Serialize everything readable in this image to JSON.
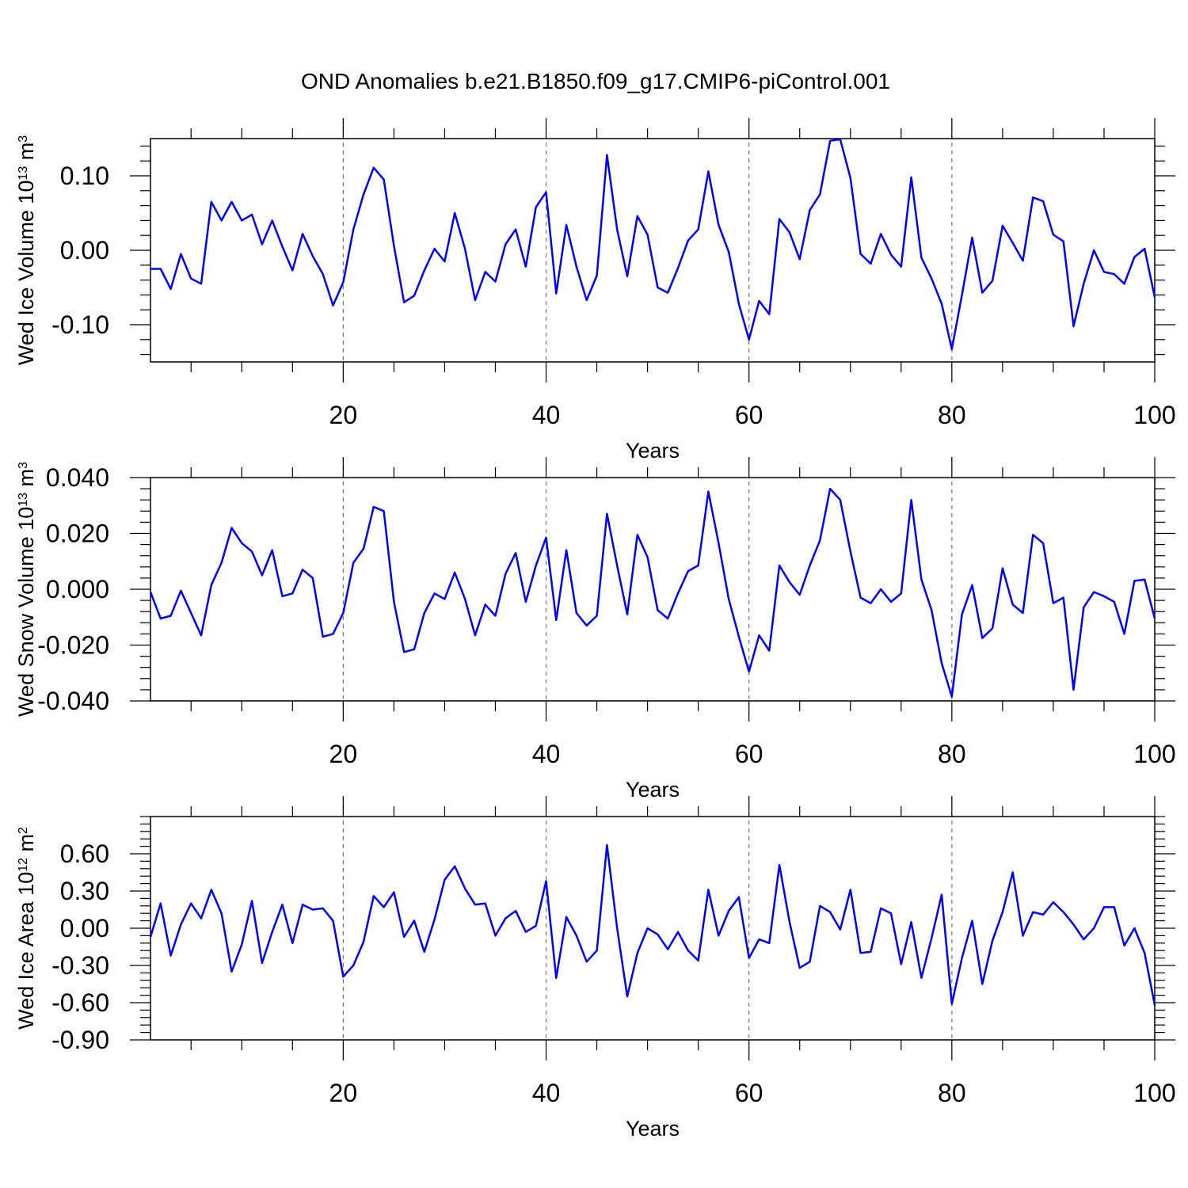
{
  "figure_title": "OND Anomalies b.e21.B1850.f09_g17.CMIP6-piControl.001",
  "chart_data": [
    {
      "type": "line",
      "title": "OND Anomalies b.e21.B1850.f09_g17.CMIP6-piControl.001",
      "xlabel": "Years",
      "ylabel": {
        "main": "Wed Ice Volume 10",
        "sup": "13",
        "unit": " m",
        "unit_sup": "3"
      },
      "xlim": [
        1,
        100
      ],
      "ylim": [
        -0.15,
        0.15
      ],
      "xticks": [
        20,
        40,
        60,
        80,
        100
      ],
      "xtick_labels": [
        "20",
        "40",
        "60",
        "80",
        "100"
      ],
      "yticks": [
        -0.1,
        0.0,
        0.1
      ],
      "ytick_labels": [
        "-0.10",
        "0.00",
        "0.10"
      ],
      "grid": "dashed vertical at 20,40,60,80",
      "line_color": "#0000ff",
      "series": [
        {
          "name": "Wed Ice Volume",
          "x_start": 1,
          "values": [
            -0.025,
            -0.025,
            -0.052,
            -0.005,
            -0.038,
            -0.045,
            0.065,
            0.04,
            0.065,
            0.04,
            0.048,
            0.008,
            0.04,
            0.005,
            -0.027,
            0.022,
            -0.008,
            -0.032,
            -0.074,
            -0.043,
            0.028,
            0.075,
            0.111,
            0.095,
            0.006,
            -0.07,
            -0.061,
            -0.027,
            0.002,
            -0.015,
            0.05,
            0.002,
            -0.067,
            -0.029,
            -0.042,
            0.008,
            0.028,
            -0.022,
            0.058,
            0.078,
            -0.058,
            0.034,
            -0.022,
            -0.067,
            -0.034,
            0.128,
            0.028,
            -0.035,
            0.046,
            0.021,
            -0.05,
            -0.057,
            -0.024,
            0.013,
            0.028,
            0.106,
            0.034,
            -0.002,
            -0.072,
            -0.12,
            -0.068,
            -0.086,
            0.042,
            0.024,
            -0.012,
            0.054,
            0.075,
            0.147,
            0.149,
            0.097,
            -0.005,
            -0.018,
            0.022,
            -0.006,
            -0.022,
            0.098,
            -0.01,
            -0.038,
            -0.072,
            -0.133,
            -0.06,
            0.017,
            -0.057,
            -0.041,
            0.033,
            0.01,
            -0.014,
            0.071,
            0.066,
            0.021,
            0.012,
            -0.102,
            -0.045,
            0.0,
            -0.029,
            -0.032,
            -0.045,
            -0.009,
            0.002,
            -0.063
          ]
        }
      ]
    },
    {
      "type": "line",
      "xlabel": "Years",
      "ylabel": {
        "main": "Wed Snow Volume 10",
        "sup": "13",
        "unit": " m",
        "unit_sup": "3"
      },
      "xlim": [
        1,
        100
      ],
      "ylim": [
        -0.04,
        0.04
      ],
      "xticks": [
        20,
        40,
        60,
        80,
        100
      ],
      "xtick_labels": [
        "20",
        "40",
        "60",
        "80",
        "100"
      ],
      "yticks": [
        -0.04,
        -0.02,
        0.0,
        0.02,
        0.04
      ],
      "ytick_labels": [
        "-0.040",
        "-0.020",
        "0.000",
        "0.020",
        "0.040"
      ],
      "grid": "dashed vertical at 20,40,60,80",
      "line_color": "#0000ff",
      "series": [
        {
          "name": "Wed Snow Volume",
          "x_start": 1,
          "values": [
            -0.001,
            -0.0105,
            -0.0095,
            -0.0005,
            -0.0085,
            -0.0165,
            0.0015,
            0.0095,
            0.022,
            0.0165,
            0.0135,
            0.005,
            0.014,
            -0.0025,
            -0.0015,
            0.007,
            0.004,
            -0.017,
            -0.016,
            -0.0085,
            0.0095,
            0.0145,
            0.0295,
            0.028,
            -0.0045,
            -0.0225,
            -0.0215,
            -0.0085,
            -0.0015,
            -0.0035,
            0.006,
            -0.0035,
            -0.0165,
            -0.0055,
            -0.0095,
            0.0055,
            0.013,
            -0.0045,
            0.0085,
            0.0185,
            -0.011,
            0.014,
            -0.0085,
            -0.013,
            -0.0095,
            0.027,
            0.0085,
            -0.009,
            0.0195,
            0.0115,
            -0.0075,
            -0.0105,
            -0.0015,
            0.0065,
            0.0085,
            0.035,
            0.0165,
            -0.0035,
            -0.017,
            -0.0295,
            -0.0165,
            -0.022,
            0.0085,
            0.0025,
            -0.002,
            0.0085,
            0.0175,
            0.036,
            0.032,
            0.0135,
            -0.003,
            -0.005,
            0.0,
            -0.0045,
            -0.0015,
            0.032,
            0.0035,
            -0.0075,
            -0.0265,
            -0.0385,
            -0.009,
            0.0015,
            -0.0175,
            -0.014,
            0.0075,
            -0.0055,
            -0.0085,
            0.0195,
            0.0165,
            -0.005,
            -0.003,
            -0.036,
            -0.0065,
            -0.001,
            -0.0025,
            -0.0045,
            -0.016,
            0.003,
            0.0035,
            -0.0105
          ]
        }
      ]
    },
    {
      "type": "line",
      "xlabel": "Years",
      "ylabel": {
        "main": "Wed Ice Area 10",
        "sup": "12",
        "unit": " m",
        "unit_sup": "2"
      },
      "xlim": [
        1,
        100
      ],
      "ylim": [
        -0.9,
        0.9
      ],
      "xticks": [
        20,
        40,
        60,
        80,
        100
      ],
      "xtick_labels": [
        "20",
        "40",
        "60",
        "80",
        "100"
      ],
      "yticks": [
        -0.9,
        -0.6,
        -0.3,
        0.0,
        0.3,
        0.6
      ],
      "ytick_labels": [
        "-0.90",
        "-0.60",
        "-0.30",
        "0.00",
        "0.30",
        "0.60"
      ],
      "grid": "dashed vertical at 20,40,60,80",
      "line_color": "#0000ff",
      "series": [
        {
          "name": "Wed Ice Area",
          "x_start": 1,
          "values": [
            -0.07,
            0.2,
            -0.22,
            0.03,
            0.2,
            0.08,
            0.31,
            0.12,
            -0.35,
            -0.13,
            0.22,
            -0.28,
            -0.03,
            0.19,
            -0.12,
            0.19,
            0.15,
            0.16,
            0.06,
            -0.39,
            -0.3,
            -0.11,
            0.26,
            0.17,
            0.29,
            -0.07,
            0.06,
            -0.19,
            0.07,
            0.39,
            0.5,
            0.32,
            0.19,
            0.2,
            -0.06,
            0.08,
            0.14,
            -0.03,
            0.02,
            0.38,
            -0.4,
            0.09,
            -0.06,
            -0.27,
            -0.18,
            0.67,
            0.0,
            -0.55,
            -0.2,
            0.0,
            -0.05,
            -0.17,
            -0.03,
            -0.18,
            -0.26,
            0.31,
            -0.06,
            0.14,
            0.25,
            -0.24,
            -0.09,
            -0.12,
            0.51,
            0.05,
            -0.32,
            -0.27,
            0.18,
            0.13,
            -0.01,
            0.31,
            -0.2,
            -0.19,
            0.16,
            0.12,
            -0.29,
            0.05,
            -0.4,
            -0.08,
            0.27,
            -0.61,
            -0.24,
            0.06,
            -0.45,
            -0.1,
            0.13,
            0.45,
            -0.06,
            0.13,
            0.11,
            0.21,
            0.13,
            0.03,
            -0.09,
            0.0,
            0.17,
            0.17,
            -0.14,
            0.0,
            -0.2,
            -0.62
          ]
        }
      ]
    }
  ]
}
